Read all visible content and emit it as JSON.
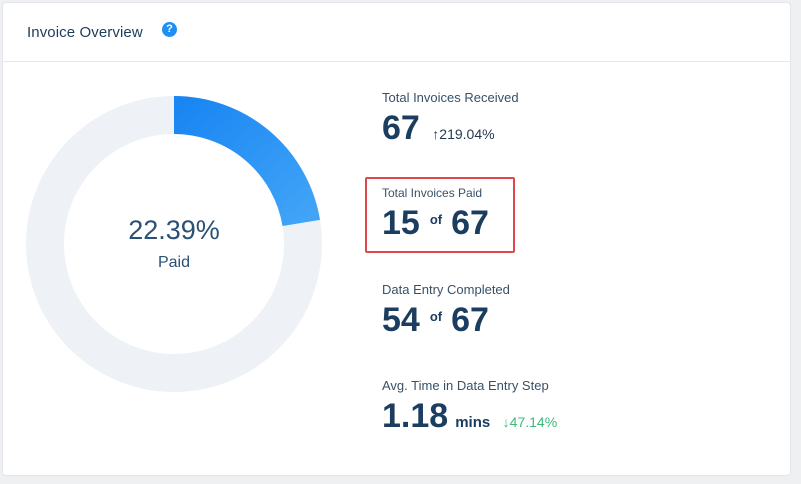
{
  "header": {
    "title": "Invoice Overview",
    "help_icon": "?"
  },
  "donut": {
    "percent_text": "22.39%",
    "label": "Paid",
    "paid_fraction": 0.2239,
    "colors": {
      "track": "#eef2f6",
      "fill_start": "#1a86f2",
      "fill_end": "#41a4f7"
    }
  },
  "stats": {
    "received": {
      "label": "Total Invoices Received",
      "value": "67",
      "trend_arrow": "↑",
      "trend": "219.04%"
    },
    "paid": {
      "label": "Total Invoices Paid",
      "value": "15",
      "of": "of",
      "total": "67"
    },
    "data_entry": {
      "label": "Data Entry Completed",
      "value": "54",
      "of": "of",
      "total": "67"
    },
    "avg_time": {
      "label": "Avg. Time in Data Entry Step",
      "value": "1.18",
      "unit": "mins",
      "trend_arrow": "↓",
      "trend": "47.14%"
    }
  }
}
